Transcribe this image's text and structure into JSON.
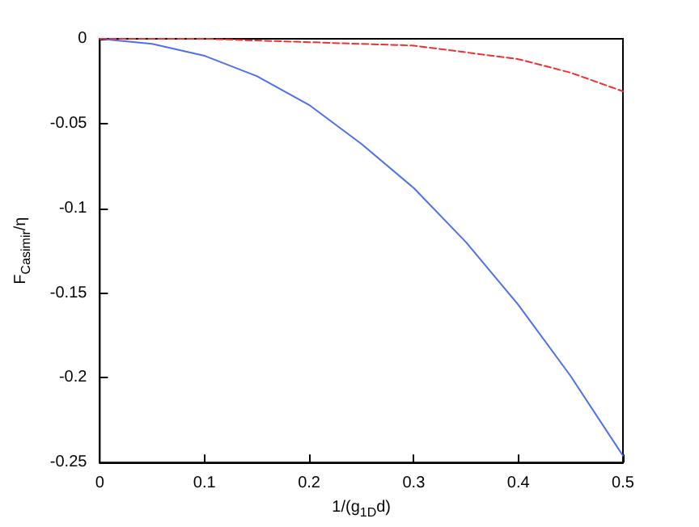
{
  "chart_data": {
    "type": "line",
    "xlabel": "1/(g$_{1D}$d)",
    "ylabel": "F$_{Casimir}$/η",
    "xlim": [
      0,
      0.5
    ],
    "ylim": [
      -0.25,
      0
    ],
    "xticks": [
      0,
      0.1,
      0.2,
      0.3,
      0.4,
      0.5
    ],
    "yticks": [
      -0.25,
      -0.2,
      -0.15,
      -0.1,
      -0.05,
      0
    ],
    "grid": false,
    "marker": "none",
    "series": [
      {
        "color": "#4d6ff0",
        "line_style": "solid",
        "x": [
          0,
          0.05,
          0.1,
          0.15,
          0.2,
          0.25,
          0.3,
          0.35,
          0.4,
          0.45,
          0.5
        ],
        "values": [
          0,
          -0.003,
          -0.01,
          -0.022,
          -0.039,
          -0.062,
          -0.088,
          -0.12,
          -0.157,
          -0.199,
          -0.246
        ]
      },
      {
        "color": "#f03030",
        "line_style": "dashed",
        "x": [
          0,
          0.05,
          0.1,
          0.15,
          0.2,
          0.25,
          0.3,
          0.35,
          0.4,
          0.45,
          0.5
        ],
        "values": [
          0,
          0,
          0,
          -0.001,
          -0.002,
          -0.003,
          -0.004,
          -0.008,
          -0.012,
          -0.02,
          -0.031
        ]
      }
    ]
  }
}
